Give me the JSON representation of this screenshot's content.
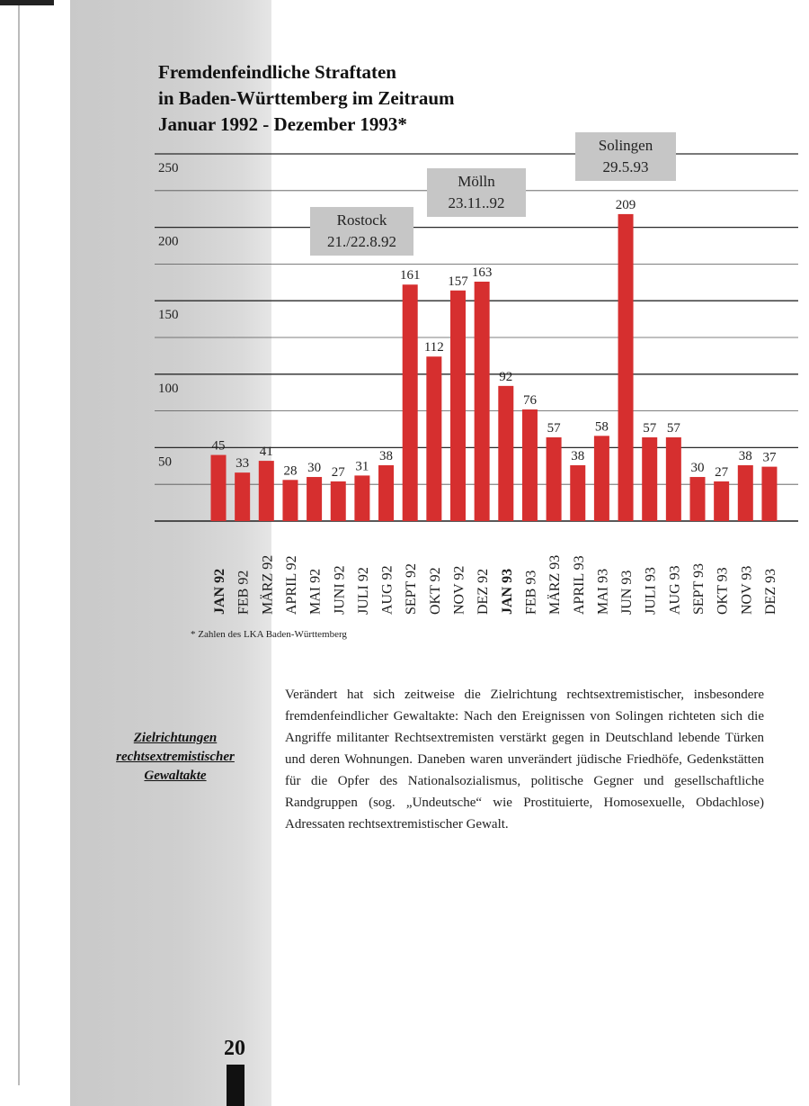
{
  "title_lines": [
    "Fremdenfeindliche Straftaten",
    "in Baden-Württemberg im Zeitraum",
    "Januar 1992 - Dezember 1993*"
  ],
  "chart_data": {
    "type": "bar",
    "title": "Fremdenfeindliche Straftaten in Baden-Württemberg im Zeitraum Januar 1992 - Dezember 1993*",
    "xlabel": "",
    "ylabel": "",
    "ylim": [
      0,
      250
    ],
    "yticks": [
      50,
      100,
      150,
      200,
      250
    ],
    "grid": true,
    "categories": [
      "JAN 92",
      "FEB 92",
      "MÄRZ 92",
      "APRIL 92",
      "MAI 92",
      "JUNI 92",
      "JULI 92",
      "AUG 92",
      "SEPT 92",
      "OKT 92",
      "NOV 92",
      "DEZ 92",
      "JAN 93",
      "FEB 93",
      "MÄRZ 93",
      "APRIL 93",
      "MAI 93",
      "JUN 93",
      "JULI 93",
      "AUG 93",
      "SEPT 93",
      "OKT 93",
      "NOV 93",
      "DEZ 93"
    ],
    "bold_categories": [
      "JAN 92",
      "JAN 93"
    ],
    "values": [
      45,
      33,
      41,
      28,
      30,
      27,
      31,
      38,
      161,
      112,
      157,
      163,
      92,
      76,
      57,
      38,
      58,
      209,
      57,
      57,
      30,
      27,
      38,
      37
    ],
    "bar_color": "#d62f2f",
    "annotations": [
      {
        "lines": [
          "Rostock",
          "21./22.8.92"
        ],
        "category": "AUG 92"
      },
      {
        "lines": [
          "Mölln",
          "23.11..92"
        ],
        "category": "NOV 92"
      },
      {
        "lines": [
          "Solingen",
          "29.5.93"
        ],
        "category": "JUN 93"
      }
    ],
    "footnote": "*  Zahlen des LKA Baden-Württemberg"
  },
  "side_heading_lines": [
    "Zielrichtungen",
    "rechtsextremistischer",
    "Gewaltakte"
  ],
  "body_text": "Verändert hat sich zeitweise die Zielrichtung rechtsextremistischer, insbesondere fremdenfeindlicher Gewaltakte: Nach den Ereignissen von Solingen richteten sich die Angriffe militanter Rechtsextremisten verstärkt gegen in Deutschland lebende Türken und deren Wohnungen. Daneben waren unverändert jüdische Friedhöfe, Gedenkstätten für die Opfer des Nationalsozialismus, politische Gegner und gesellschaftliche Randgruppen (sog. „Undeutsche“ wie Prostituierte, Homosexuelle, Obdachlose) Adressaten rechtsextremistischer Gewalt.",
  "page_number": "20"
}
